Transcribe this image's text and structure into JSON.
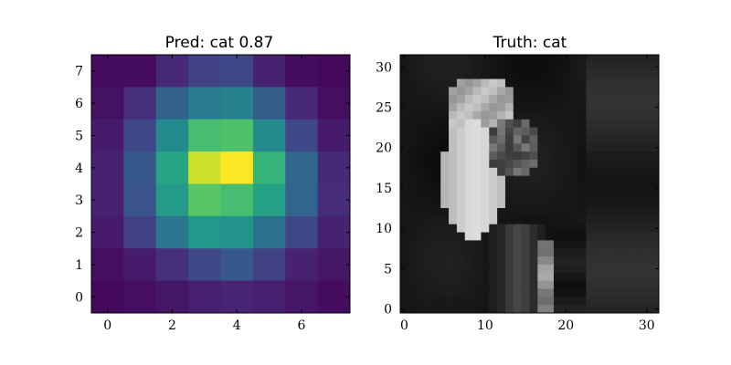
{
  "figure": {
    "background": "#ffffff"
  },
  "chart_data": [
    {
      "type": "heatmap",
      "title": "Pred: cat 0.87",
      "colormap": "viridis",
      "rows": 8,
      "cols": 8,
      "vmin": 0.0,
      "vmax": 1.0,
      "values": [
        [
          0.03,
          0.03,
          0.12,
          0.2,
          0.22,
          0.1,
          0.03,
          0.02
        ],
        [
          0.05,
          0.14,
          0.32,
          0.42,
          0.44,
          0.3,
          0.12,
          0.04
        ],
        [
          0.08,
          0.22,
          0.48,
          0.7,
          0.72,
          0.48,
          0.22,
          0.08
        ],
        [
          0.1,
          0.28,
          0.6,
          0.93,
          1.0,
          0.66,
          0.34,
          0.12
        ],
        [
          0.1,
          0.26,
          0.55,
          0.74,
          0.7,
          0.58,
          0.33,
          0.13
        ],
        [
          0.08,
          0.2,
          0.4,
          0.54,
          0.52,
          0.38,
          0.22,
          0.1
        ],
        [
          0.04,
          0.08,
          0.14,
          0.22,
          0.28,
          0.2,
          0.1,
          0.06
        ],
        [
          0.02,
          0.04,
          0.06,
          0.09,
          0.11,
          0.09,
          0.06,
          0.03
        ]
      ],
      "xticks": [
        0,
        2,
        4,
        6
      ],
      "yticks": [
        0,
        1,
        2,
        3,
        4,
        5,
        6,
        7
      ],
      "xlim": [
        -0.5,
        7.5
      ],
      "ylim": [
        7.5,
        -0.5
      ]
    },
    {
      "type": "heatmap",
      "title": "Truth: cat",
      "colormap": "gray",
      "rows": 32,
      "cols": 32,
      "image_description_levels": "grayscale image of a cat on a dark background",
      "xticks": [
        0,
        10,
        20,
        30
      ],
      "yticks": [
        0,
        5,
        10,
        15,
        20,
        25,
        30
      ],
      "xlim": [
        -0.5,
        31.5
      ],
      "ylim": [
        31.5,
        -0.5
      ]
    }
  ]
}
